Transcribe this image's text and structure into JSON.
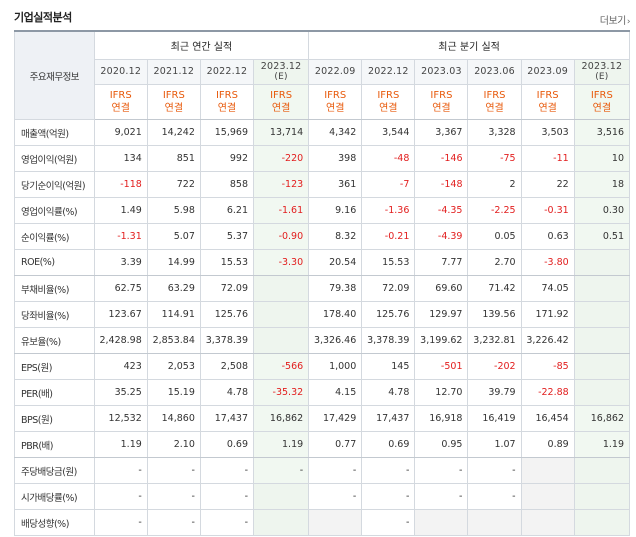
{
  "title": "기업실적분석",
  "more_label": "더보기",
  "header": {
    "label_col": "주요재무정보",
    "annual_group": "최근 연간 실적",
    "quarter_group": "최근 분기 실적",
    "periods": [
      "2020.12",
      "2021.12",
      "2022.12",
      "2023.12",
      "2022.09",
      "2022.12",
      "2023.03",
      "2023.06",
      "2023.09",
      "2023.12"
    ],
    "estimate_mark": "(E)",
    "estimate_columns": [
      3,
      9
    ],
    "basis_line1": "IFRS",
    "basis_line2": "연결"
  },
  "rows": [
    {
      "label": "매출액(억원)",
      "values": [
        "9,021",
        "14,242",
        "15,969",
        "13,714",
        "4,342",
        "3,544",
        "3,367",
        "3,328",
        "3,503",
        "3,516"
      ]
    },
    {
      "label": "영업이익(억원)",
      "values": [
        "134",
        "851",
        "992",
        "-220",
        "398",
        "-48",
        "-146",
        "-75",
        "-11",
        "10"
      ]
    },
    {
      "label": "당기순이익(억원)",
      "values": [
        "-118",
        "722",
        "858",
        "-123",
        "361",
        "-7",
        "-148",
        "2",
        "22",
        "18"
      ]
    },
    {
      "label": "영업이익률(%)",
      "values": [
        "1.49",
        "5.98",
        "6.21",
        "-1.61",
        "9.16",
        "-1.36",
        "-4.35",
        "-2.25",
        "-0.31",
        "0.30"
      ]
    },
    {
      "label": "순이익률(%)",
      "values": [
        "-1.31",
        "5.07",
        "5.37",
        "-0.90",
        "8.32",
        "-0.21",
        "-4.39",
        "0.05",
        "0.63",
        "0.51"
      ]
    },
    {
      "label": "ROE(%)",
      "values": [
        "3.39",
        "14.99",
        "15.53",
        "-3.30",
        "20.54",
        "15.53",
        "7.77",
        "2.70",
        "-3.80",
        ""
      ]
    },
    {
      "label": "부채비율(%)",
      "values": [
        "62.75",
        "63.29",
        "72.09",
        "",
        "79.38",
        "72.09",
        "69.60",
        "71.42",
        "74.05",
        ""
      ]
    },
    {
      "label": "당좌비율(%)",
      "values": [
        "123.67",
        "114.91",
        "125.76",
        "",
        "178.40",
        "125.76",
        "129.97",
        "139.56",
        "171.92",
        ""
      ]
    },
    {
      "label": "유보율(%)",
      "values": [
        "2,428.98",
        "2,853.84",
        "3,378.39",
        "",
        "3,326.46",
        "3,378.39",
        "3,199.62",
        "3,232.81",
        "3,226.42",
        ""
      ]
    },
    {
      "label": "EPS(원)",
      "values": [
        "423",
        "2,053",
        "2,508",
        "-566",
        "1,000",
        "145",
        "-501",
        "-202",
        "-85",
        ""
      ]
    },
    {
      "label": "PER(배)",
      "values": [
        "35.25",
        "15.19",
        "4.78",
        "-35.32",
        "4.15",
        "4.78",
        "12.70",
        "39.79",
        "-22.88",
        ""
      ]
    },
    {
      "label": "BPS(원)",
      "values": [
        "12,532",
        "14,860",
        "17,437",
        "16,862",
        "17,429",
        "17,437",
        "16,918",
        "16,419",
        "16,454",
        "16,862"
      ]
    },
    {
      "label": "PBR(배)",
      "values": [
        "1.19",
        "2.10",
        "0.69",
        "1.19",
        "0.77",
        "0.69",
        "0.95",
        "1.07",
        "0.89",
        "1.19"
      ]
    },
    {
      "label": "주당배당금(원)",
      "values": [
        "-",
        "-",
        "-",
        "-",
        "-",
        "-",
        "-",
        "-",
        "",
        ""
      ]
    },
    {
      "label": "시가배당률(%)",
      "values": [
        "-",
        "-",
        "-",
        "",
        "-",
        "-",
        "-",
        "-",
        "",
        ""
      ]
    },
    {
      "label": "배당성향(%)",
      "values": [
        "-",
        "-",
        "-",
        "",
        "",
        "-",
        "",
        "",
        "",
        ""
      ]
    }
  ],
  "colors": {
    "negative": "#e21e1e",
    "basis": "#e85a0c",
    "estimate_bg": "#f1f8f1",
    "empty_bg": "#f3f3f3"
  }
}
